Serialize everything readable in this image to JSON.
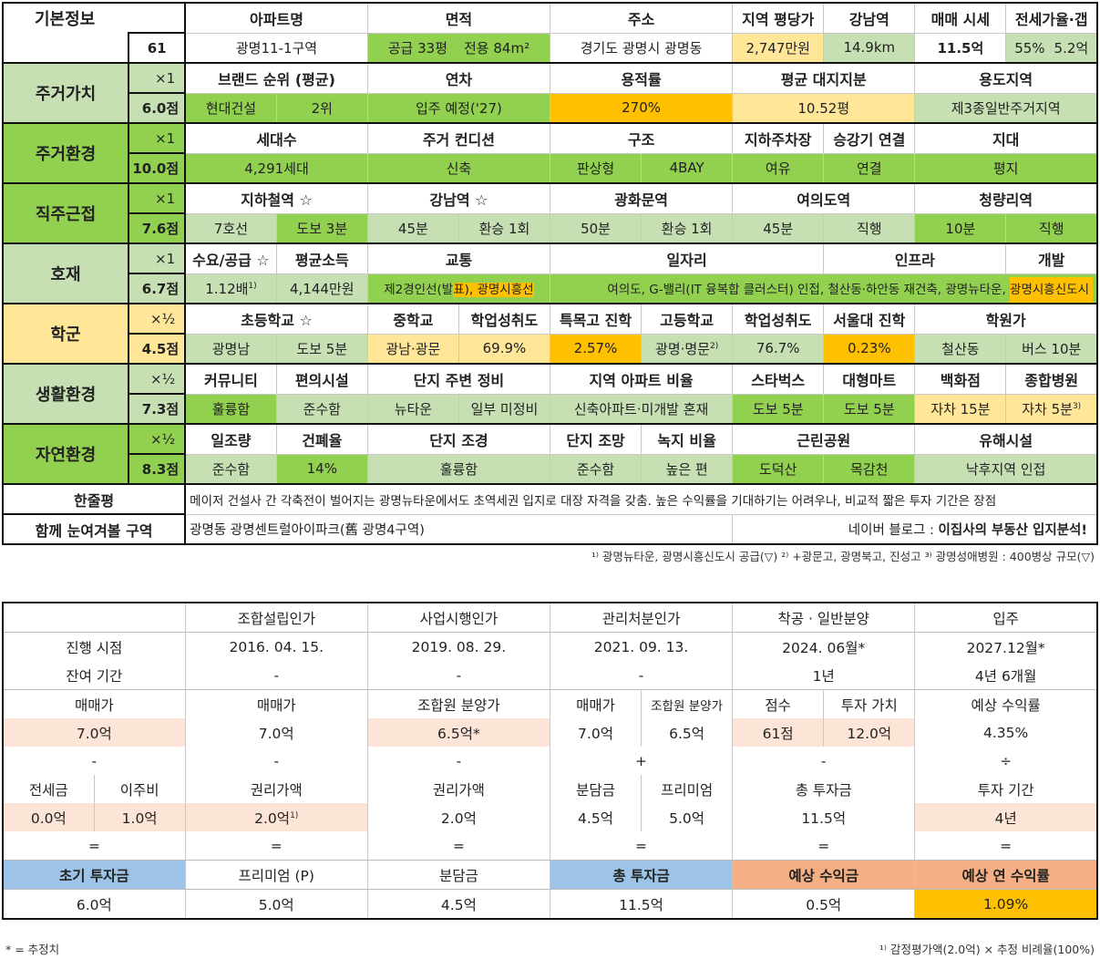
{
  "colors": {
    "dark_green": "#92d050",
    "light_green": "#c6e0b4",
    "light_yellow": "#ffe699",
    "orange": "#ffc000",
    "pink": "#fce4d6",
    "blue": "#9dc3e6",
    "salmon": "#f4b084"
  },
  "basic": {
    "section": "기본정보",
    "score": "61",
    "headers": [
      "아파트명",
      "면적",
      "주소",
      "지역 평당가",
      "강남역",
      "매매 시세",
      "전세가율·갭"
    ],
    "apt": "광명11-1구역",
    "area1": "공급 33평",
    "area2": "전용 84m²",
    "address": "경기도 광명시 광명동",
    "pyeong_price": "2,747만원",
    "gangnam_dist": "14.9km",
    "sale_price": "11.5억",
    "jeonse_ratio": "55%",
    "gap": "5.2억"
  },
  "sections": {
    "residential_value": {
      "label": "주거가치",
      "mult": "×1",
      "score": "6.0점",
      "headers": [
        "브랜드 순위 (평균)",
        "연차",
        "용적률",
        "평균 대지지분",
        "용도지역"
      ],
      "brand": "현대건설",
      "brand_rank": "2위",
      "year": "입주 예정('27)",
      "far": "270%",
      "land_share": "10.52평",
      "zoning": "제3종일반주거지역"
    },
    "residential_env": {
      "label": "주거환경",
      "mult": "×1",
      "score": "10.0점",
      "headers": [
        "세대수",
        "주거 컨디션",
        "구조",
        "지하주차장",
        "승강기 연결",
        "지대"
      ],
      "households": "4,291세대",
      "condition": "신축",
      "structure1": "판상형",
      "structure2": "4BAY",
      "parking": "여유",
      "elevator": "연결",
      "terrain": "평지"
    },
    "commute": {
      "label": "직주근접",
      "mult": "×1",
      "score": "7.6점",
      "headers": [
        "지하철역 ☆",
        "강남역 ☆",
        "광화문역",
        "여의도역",
        "청량리역"
      ],
      "subway_line": "7호선",
      "subway_walk": "도보 3분",
      "gangnam_time": "45분",
      "gangnam_transfer": "환승 1회",
      "gwanghwamun_time": "50분",
      "gwanghwamun_transfer": "환승 1회",
      "yeouido_time": "45분",
      "yeouido_transfer": "직행",
      "cheongnyangni_time": "10분",
      "cheongnyangni_transfer": "직행"
    },
    "development": {
      "label": "호재",
      "mult": "×1",
      "score": "6.7점",
      "headers": [
        "수요/공급 ☆",
        "평균소득",
        "교통",
        "일자리",
        "인프라",
        "개발"
      ],
      "supply": "1.12배",
      "supply_note": "1)",
      "income": "4,144만원",
      "transport_a": "제2경인선(발",
      "transport_b": "표), 광명시흥선",
      "jobs_infra": "여의도, G-밸리(IT 융복합 클러스터) 인접, 철산동·하안동 재건축, 광명뉴타운, ",
      "develop": "광명시흥신도시"
    },
    "school": {
      "label": "학군",
      "mult": "×½",
      "score": "4.5점",
      "headers": [
        "초등학교 ☆",
        "중학교",
        "학업성취도",
        "특목고 진학",
        "고등학교",
        "학업성취도",
        "서울대 진학",
        "학원가"
      ],
      "elementary": "광명남",
      "elementary_walk": "도보 5분",
      "middle": "광남·광문",
      "middle_score": "69.9%",
      "special_hs": "2.57%",
      "high": "광명·명문",
      "high_note": "2)",
      "high_score": "76.7%",
      "snu": "0.23%",
      "academy": "철산동",
      "academy_time": "버스 10분"
    },
    "living": {
      "label": "생활환경",
      "mult": "×½",
      "score": "7.3점",
      "headers": [
        "커뮤니티",
        "편의시설",
        "단지 주변 정비",
        "지역 아파트 비율",
        "스타벅스",
        "대형마트",
        "백화점",
        "종합병원"
      ],
      "community": "훌륭함",
      "convenience": "준수함",
      "surround1": "뉴타운",
      "surround2": "일부 미정비",
      "ratio": "신축아파트·미개발 혼재",
      "starbucks": "도보 5분",
      "mart": "도보 5분",
      "dept": "자차 15분",
      "hospital": "자차 5분",
      "hospital_note": "3)"
    },
    "nature": {
      "label": "자연환경",
      "mult": "×½",
      "score": "8.3점",
      "headers": [
        "일조량",
        "건폐율",
        "단지 조경",
        "단지 조망",
        "녹지 비율",
        "근린공원",
        "유해시설"
      ],
      "sunlight": "준수함",
      "bcr": "14%",
      "landscape": "훌륭함",
      "view": "준수함",
      "green": "높은 편",
      "park1": "도덕산",
      "park2": "목감천",
      "hazard": "낙후지역 인접"
    }
  },
  "summary": {
    "label": "한줄평",
    "text": "메이저 건설사 간 각축전이 벌어지는 광명뉴타운에서도 초역세권 입지로 대장 자격을 갖춤. 높은 수익률을 기대하기는 어려우나, 비교적 짧은 투자 기간은 장점"
  },
  "related": {
    "label": "함께 눈여겨볼 구역",
    "text": "광명동 광명센트럴아이파크(舊 광명4구역)",
    "blog_prefix": "네이버 블로그 : ",
    "blog_name": "이집사의 부동산 입지분석!"
  },
  "footnote_top": "¹⁾ 광명뉴타운, 광명시흥신도시 공급(▽) ²⁾ +광문고, 광명북고, 진성고 ³⁾ 광명성애병원 : 400병상 규모(▽)",
  "progress": {
    "stages": [
      "조합설립인가",
      "사업시행인가",
      "관리처분인가",
      "착공 · 일반분양",
      "입주"
    ],
    "row_date_label": "진행 시점",
    "dates": [
      "2016. 04. 15.",
      "2019. 08. 29.",
      "2021. 09. 13.",
      "2024. 06월*",
      "2027.12월*"
    ],
    "row_remain_label": "잔여 기간",
    "remain": [
      "-",
      "-",
      "-",
      "1년",
      "4년 6개월"
    ]
  },
  "calc": {
    "c1": {
      "h1": "매매가",
      "v1": "7.0억",
      "op1": "-",
      "h2a": "전세금",
      "h2b": "이주비",
      "v2a": "0.0억",
      "v2b": "1.0억",
      "op2": "=",
      "h3": "초기 투자금",
      "v3": "6.0억"
    },
    "c2": {
      "h1": "매매가",
      "v1": "7.0억",
      "op1": "-",
      "h2": "권리가액",
      "v2": "2.0억",
      "v2_note": "1)",
      "op2": "=",
      "h3": "프리미엄 (P)",
      "v3": "5.0억"
    },
    "c3": {
      "h1": "조합원 분양가",
      "v1": "6.5억*",
      "op1": "-",
      "h2": "권리가액",
      "v2": "2.0억",
      "op2": "=",
      "h3": "분담금",
      "v3": "4.5억"
    },
    "c4": {
      "h1a": "매매가",
      "h1b": "조합원 분양가",
      "v1a": "7.0억",
      "v1b": "6.5억",
      "op1": "+",
      "h2a": "분담금",
      "h2b": "프리미엄",
      "v2a": "4.5억",
      "v2b": "5.0억",
      "op2": "=",
      "h3": "총 투자금",
      "v3": "11.5억"
    },
    "c5": {
      "h1a": "점수",
      "h1b": "투자 가치",
      "v1a": "61점",
      "v1b": "12.0억",
      "op1": "-",
      "h2": "총 투자금",
      "v2": "11.5억",
      "op2": "=",
      "h3": "예상 수익금",
      "v3": "0.5억"
    },
    "c6": {
      "h1": "예상 수익률",
      "v1": "4.35%",
      "op1": "÷",
      "h2": "투자 기간",
      "v2": "4년",
      "op2": "=",
      "h3": "예상 연 수익률",
      "v3": "1.09%"
    }
  },
  "footnote_left": "* = 추정치",
  "footnote_right": "¹⁾ 감정평가액(2.0억) × 추정 비례율(100%)"
}
